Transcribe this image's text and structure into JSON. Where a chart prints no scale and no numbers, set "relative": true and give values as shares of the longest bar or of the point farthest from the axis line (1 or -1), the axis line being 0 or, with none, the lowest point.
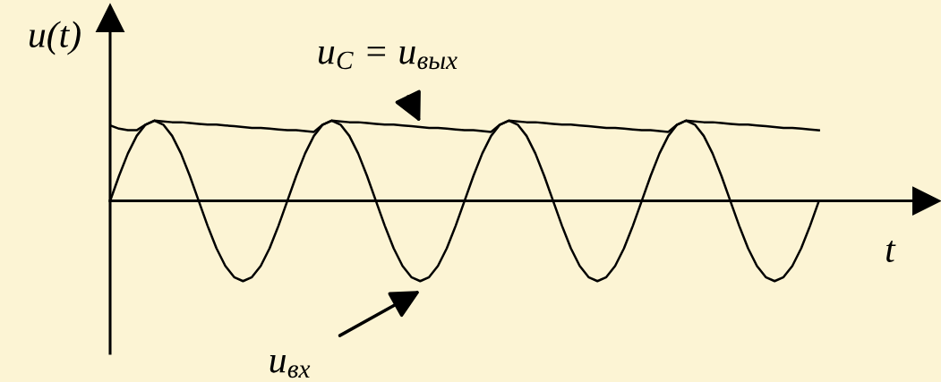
{
  "chart_data": {
    "type": "line",
    "relative": true,
    "xlabel": "t",
    "ylabel": "u(t)",
    "legend": false,
    "marker": "none",
    "line_style": "solid",
    "categories": [
      null,
      null,
      null,
      null,
      null,
      null,
      null,
      null,
      null,
      null,
      null,
      null,
      null,
      null,
      null,
      null,
      null,
      null,
      null,
      null,
      null,
      null,
      null,
      null,
      null,
      null,
      null,
      null,
      null,
      null,
      null,
      null,
      null,
      null,
      null,
      null,
      null,
      null,
      null,
      null,
      null,
      null,
      null,
      null,
      null,
      null,
      null,
      null,
      null,
      null,
      null,
      null,
      null,
      null,
      null,
      null,
      null,
      null,
      null,
      null,
      null,
      null,
      null,
      null,
      null,
      null,
      null,
      null,
      null,
      null,
      null,
      null,
      null,
      null,
      null,
      null,
      null,
      null,
      null,
      null,
      null
    ],
    "series": [
      {
        "name": "u$_{вх}$",
        "color": "#000000",
        "values": [
          0,
          0.31,
          0.59,
          0.81,
          0.95,
          1,
          0.95,
          0.81,
          0.59,
          0.31,
          0,
          -0.31,
          -0.59,
          -0.81,
          -0.95,
          -1,
          -0.95,
          -0.81,
          -0.59,
          -0.31,
          0,
          0.31,
          0.59,
          0.81,
          0.95,
          1,
          0.95,
          0.81,
          0.59,
          0.31,
          0,
          -0.31,
          -0.59,
          -0.81,
          -0.95,
          -1,
          -0.95,
          -0.81,
          -0.59,
          -0.31,
          0,
          0.31,
          0.59,
          0.81,
          0.95,
          1,
          0.95,
          0.81,
          0.59,
          0.31,
          0,
          -0.31,
          -0.59,
          -0.81,
          -0.95,
          -1,
          -0.95,
          -0.81,
          -0.59,
          -0.31,
          0,
          0.31,
          0.59,
          0.81,
          0.95,
          1,
          0.95,
          0.81,
          0.59,
          0.31,
          0,
          -0.31,
          -0.59,
          -0.81,
          -0.95,
          -1,
          -0.95,
          -0.81,
          -0.59,
          -0.31,
          0
        ]
      },
      {
        "name": "u$_{C}$ = u$_{вых}$",
        "color": "#000000",
        "values": [
          0.94,
          0.9,
          0.88,
          0.88,
          0.95,
          1,
          0.99,
          0.98,
          0.98,
          0.97,
          0.96,
          0.95,
          0.95,
          0.94,
          0.93,
          0.92,
          0.91,
          0.91,
          0.9,
          0.89,
          0.88,
          0.88,
          0.87,
          0.86,
          0.95,
          1,
          0.99,
          0.98,
          0.98,
          0.97,
          0.96,
          0.95,
          0.95,
          0.94,
          0.93,
          0.92,
          0.91,
          0.91,
          0.9,
          0.89,
          0.88,
          0.88,
          0.87,
          0.86,
          0.95,
          1,
          0.99,
          0.98,
          0.98,
          0.97,
          0.96,
          0.95,
          0.95,
          0.94,
          0.93,
          0.92,
          0.91,
          0.91,
          0.9,
          0.89,
          0.88,
          0.88,
          0.87,
          0.86,
          0.95,
          1,
          0.99,
          0.98,
          0.98,
          0.97,
          0.96,
          0.95,
          0.95,
          0.94,
          0.93,
          0.92,
          0.91,
          0.91,
          0.9,
          0.89,
          0.88
        ]
      }
    ]
  }
}
